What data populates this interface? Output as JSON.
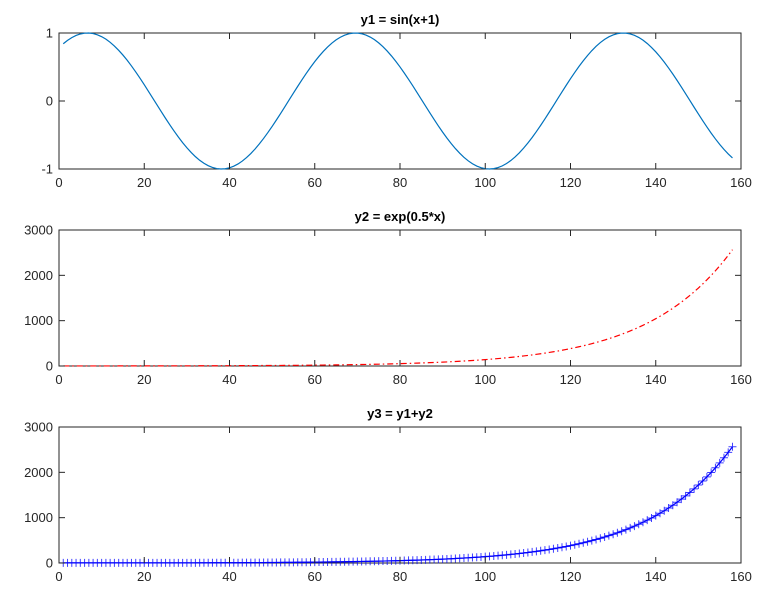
{
  "chart_data": [
    {
      "type": "line",
      "title": "y1 = sin(x+1)",
      "xlabel": "",
      "ylabel": "",
      "xlim": [
        0,
        160
      ],
      "ylim": [
        -1,
        1
      ],
      "xticks": [
        0,
        20,
        40,
        60,
        80,
        100,
        120,
        140,
        160
      ],
      "yticks": [
        -1,
        0,
        1
      ],
      "xtick_labels": [
        "0",
        "20",
        "40",
        "60",
        "80",
        "100",
        "120",
        "140",
        "160"
      ],
      "ytick_labels": [
        "-1",
        "0",
        "1"
      ],
      "grid": false,
      "series": [
        {
          "function": "sin(x+1)",
          "x_samples": "t = 0.1*k, k = 0..157, plotted at sample index 1..158",
          "x_range": [
            1,
            158
          ],
          "color": "#0072BD",
          "line_style": "solid",
          "marker": "none"
        }
      ]
    },
    {
      "type": "line",
      "title": "y2 = exp(0.5*x)",
      "xlabel": "",
      "ylabel": "",
      "xlim": [
        0,
        160
      ],
      "ylim": [
        0,
        3000
      ],
      "xticks": [
        0,
        20,
        40,
        60,
        80,
        100,
        120,
        140,
        160
      ],
      "yticks": [
        0,
        1000,
        2000,
        3000
      ],
      "xtick_labels": [
        "0",
        "20",
        "40",
        "60",
        "80",
        "100",
        "120",
        "140",
        "160"
      ],
      "ytick_labels": [
        "0",
        "1000",
        "2000",
        "3000"
      ],
      "grid": false,
      "series": [
        {
          "function": "exp(0.5*x)",
          "x_samples": "t = 0.1*k, k = 0..157, plotted at sample index 1..158",
          "x_range": [
            1,
            158
          ],
          "color": "#FF0000",
          "line_style": "dash-dot",
          "marker": "none"
        }
      ]
    },
    {
      "type": "line",
      "title": "y3 = y1+y2",
      "xlabel": "",
      "ylabel": "",
      "xlim": [
        0,
        160
      ],
      "ylim": [
        0,
        3000
      ],
      "xticks": [
        0,
        20,
        40,
        60,
        80,
        100,
        120,
        140,
        160
      ],
      "yticks": [
        0,
        1000,
        2000,
        3000
      ],
      "xtick_labels": [
        "0",
        "20",
        "40",
        "60",
        "80",
        "100",
        "120",
        "140",
        "160"
      ],
      "ytick_labels": [
        "0",
        "1000",
        "2000",
        "3000"
      ],
      "grid": false,
      "series": [
        {
          "function": "sin(x+1)+exp(0.5*x)",
          "x_samples": "t = 0.1*k, k = 0..157, plotted at sample index 1..158",
          "x_range": [
            1,
            158
          ],
          "color": "#0000FF",
          "line_style": "solid",
          "marker": "plus"
        }
      ]
    }
  ]
}
